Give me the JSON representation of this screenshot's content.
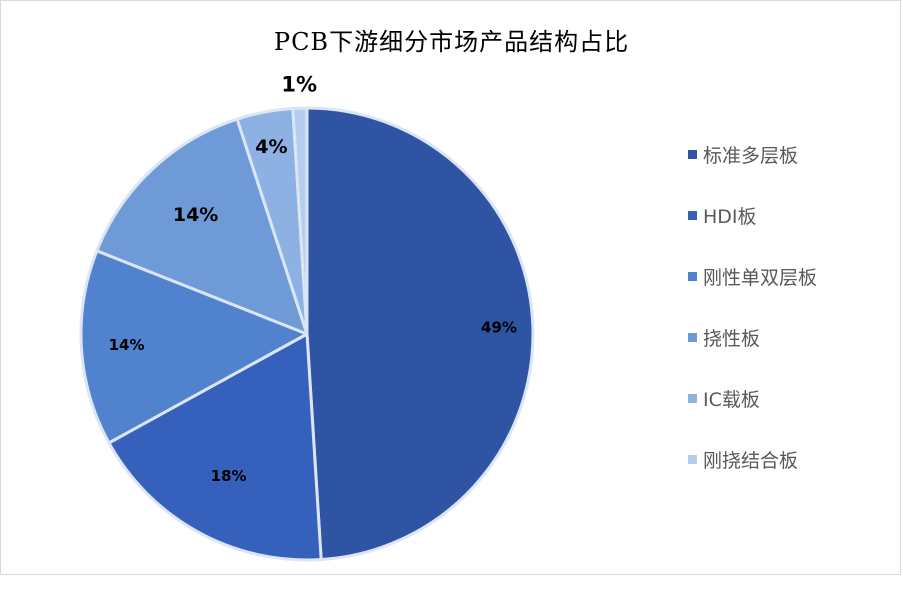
{
  "chart_data": {
    "type": "pie",
    "title": "PCB下游细分市场产品结构占比",
    "categories": [
      "标准多层板",
      "HDI板",
      "刚性单双层板",
      "挠性板",
      "IC载板",
      "刚挠结合板"
    ],
    "values": [
      49,
      18,
      14,
      14,
      4,
      1
    ],
    "data_labels": [
      "49%",
      "18%",
      "14%",
      "14%",
      "4%",
      "1%"
    ],
    "colors": [
      "#2e54a3",
      "#3560bb",
      "#5082cd",
      "#6f9ad8",
      "#8eb1e4",
      "#b5cdee"
    ],
    "legend_position": "right"
  }
}
